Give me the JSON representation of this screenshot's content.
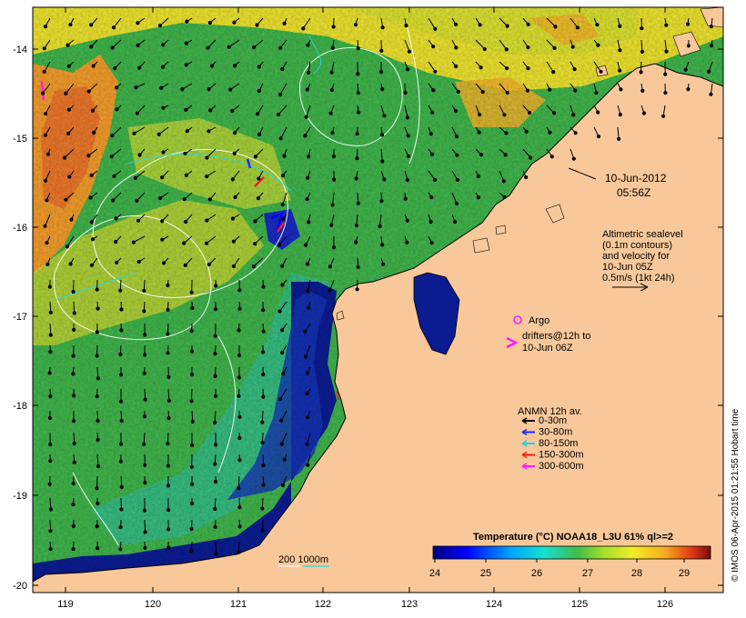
{
  "colors": {
    "land": "#f9c89a",
    "deep_blue": "#0a1a8c",
    "green": "#3fb24a",
    "yellow": "#f0e12c",
    "orange": "#f29a2a",
    "cyan": "#1fc6d8"
  },
  "axes": {
    "x_ticks": [
      "119",
      "120",
      "121",
      "122",
      "123",
      "124",
      "125",
      "126"
    ],
    "y_ticks": [
      "-14",
      "-15",
      "-16",
      "-17",
      "-18",
      "-19",
      "-20"
    ]
  },
  "annotations": {
    "date_line1": "10-Jun-2012",
    "date_line2": "05:56Z",
    "alt_line1": "Altimetric sealevel",
    "alt_line2": "(0.1m contours)",
    "alt_line3": "and velocity for",
    "alt_line4": "10-Jun 05Z",
    "alt_line5": "0.5m/s (1kt 24h)",
    "argo_label": "Argo",
    "drifters_line1": "drifters@12h to",
    "drifters_line2": "10-Jun 06Z",
    "anmn_title": "ANMN 12h av.",
    "anmn_items": [
      {
        "label": "0-30m",
        "color": "#000000"
      },
      {
        "label": "30-80m",
        "color": "#1a2cff"
      },
      {
        "label": "80-150m",
        "color": "#19d3e6"
      },
      {
        "label": "150-300m",
        "color": "#ff1a1a"
      },
      {
        "label": "300-600m",
        "color": "#ff1aff"
      }
    ],
    "bathy_label": "200  1000m"
  },
  "colorbar": {
    "title": "Temperature (°C) NOAA18_L3U 61% ql>=2",
    "ticks": [
      "24",
      "25",
      "26",
      "27",
      "28",
      "29"
    ]
  },
  "credit": "© IMOS 06-Apr-2015 01:21:55 Hobart time"
}
